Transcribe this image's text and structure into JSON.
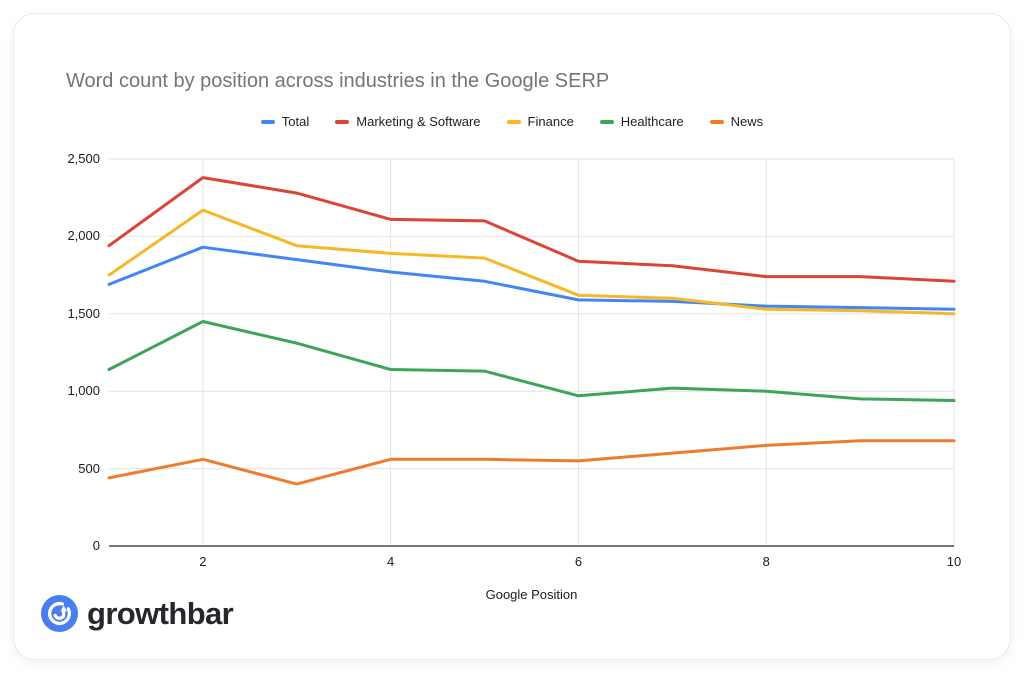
{
  "chart_data": {
    "type": "line",
    "title": "Word count by position across industries in the Google SERP",
    "xlabel": "Google Position",
    "ylabel": "",
    "x": [
      1,
      2,
      3,
      4,
      5,
      6,
      7,
      8,
      9,
      10
    ],
    "xlim": [
      1,
      10
    ],
    "ylim": [
      0,
      2500
    ],
    "x_ticks": [
      "2",
      "4",
      "6",
      "8",
      "10"
    ],
    "x_tick_positions": [
      2,
      4,
      6,
      8,
      10
    ],
    "y_ticks": [
      "0",
      "500",
      "1,000",
      "1,500",
      "2,000",
      "2,500"
    ],
    "y_tick_values": [
      0,
      500,
      1000,
      1500,
      2000,
      2500
    ],
    "grid": true,
    "legend_position": "top",
    "series": [
      {
        "name": "Total",
        "color": "#4285F4",
        "values": [
          1690,
          1930,
          1850,
          1770,
          1710,
          1590,
          1580,
          1550,
          1540,
          1530
        ]
      },
      {
        "name": "Marketing & Software",
        "color": "#DB4437",
        "values": [
          1940,
          2380,
          2280,
          2110,
          2100,
          1840,
          1810,
          1740,
          1740,
          1710
        ]
      },
      {
        "name": "Finance",
        "color": "#F5B826",
        "values": [
          1750,
          2170,
          1940,
          1890,
          1860,
          1620,
          1600,
          1530,
          1520,
          1500
        ]
      },
      {
        "name": "Healthcare",
        "color": "#3FA45B",
        "values": [
          1140,
          1450,
          1310,
          1140,
          1130,
          970,
          1020,
          1000,
          950,
          940
        ]
      },
      {
        "name": "News",
        "color": "#EF7C2E",
        "values": [
          440,
          560,
          400,
          560,
          560,
          550,
          600,
          650,
          680,
          680
        ]
      }
    ],
    "axis_colors": {
      "gridline": "#e3e3e3",
      "baseline": "#4a4a4a"
    }
  },
  "branding": {
    "logo_text": "growthbar",
    "logo_color": "#4a7df0"
  }
}
